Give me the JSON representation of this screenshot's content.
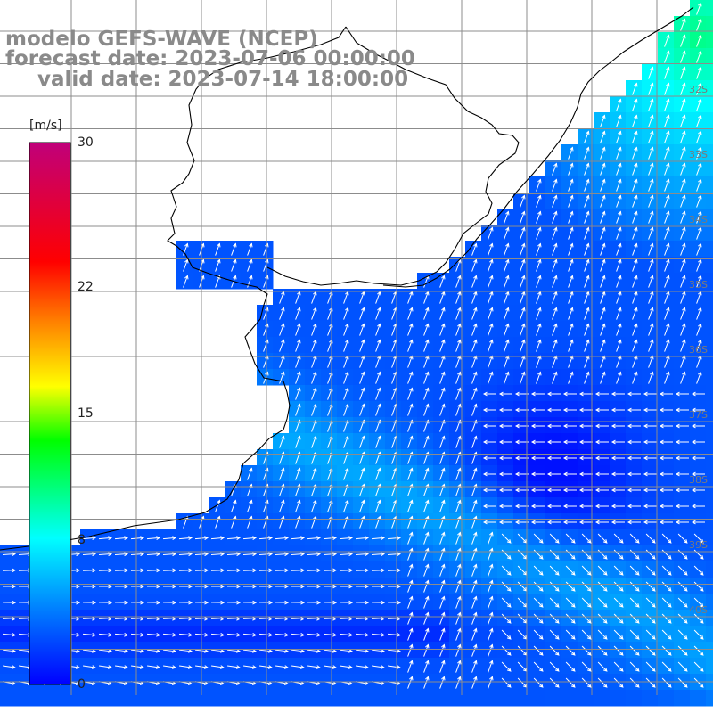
{
  "title": {
    "line1": "modelo GEFS-WAVE (NCEP)",
    "line2": "forecast date: 2023-07-06 00:00:00",
    "line3": "valid date: 2023-07-14 18:00:00"
  },
  "colorbar": {
    "unit": "[m/s]",
    "ticks": [
      {
        "label": "30",
        "value": 30
      },
      {
        "label": "22",
        "value": 22
      },
      {
        "label": "15",
        "value": 15
      },
      {
        "label": "8",
        "value": 8
      },
      {
        "label": "0",
        "value": 0
      }
    ],
    "colors": [
      "#0000ff",
      "#0080ff",
      "#00ffff",
      "#00ff00",
      "#ffff00",
      "#ff8000",
      "#ff0000",
      "#c0007a"
    ]
  },
  "lat_labels": [
    "32S",
    "33S",
    "34S",
    "35S",
    "36S",
    "37S",
    "38S",
    "39S",
    "40S"
  ],
  "colors": {
    "land": "#ffffff",
    "coast": "#000000",
    "grid": "#8c8c8c",
    "arrows": "#ffffff"
  }
}
